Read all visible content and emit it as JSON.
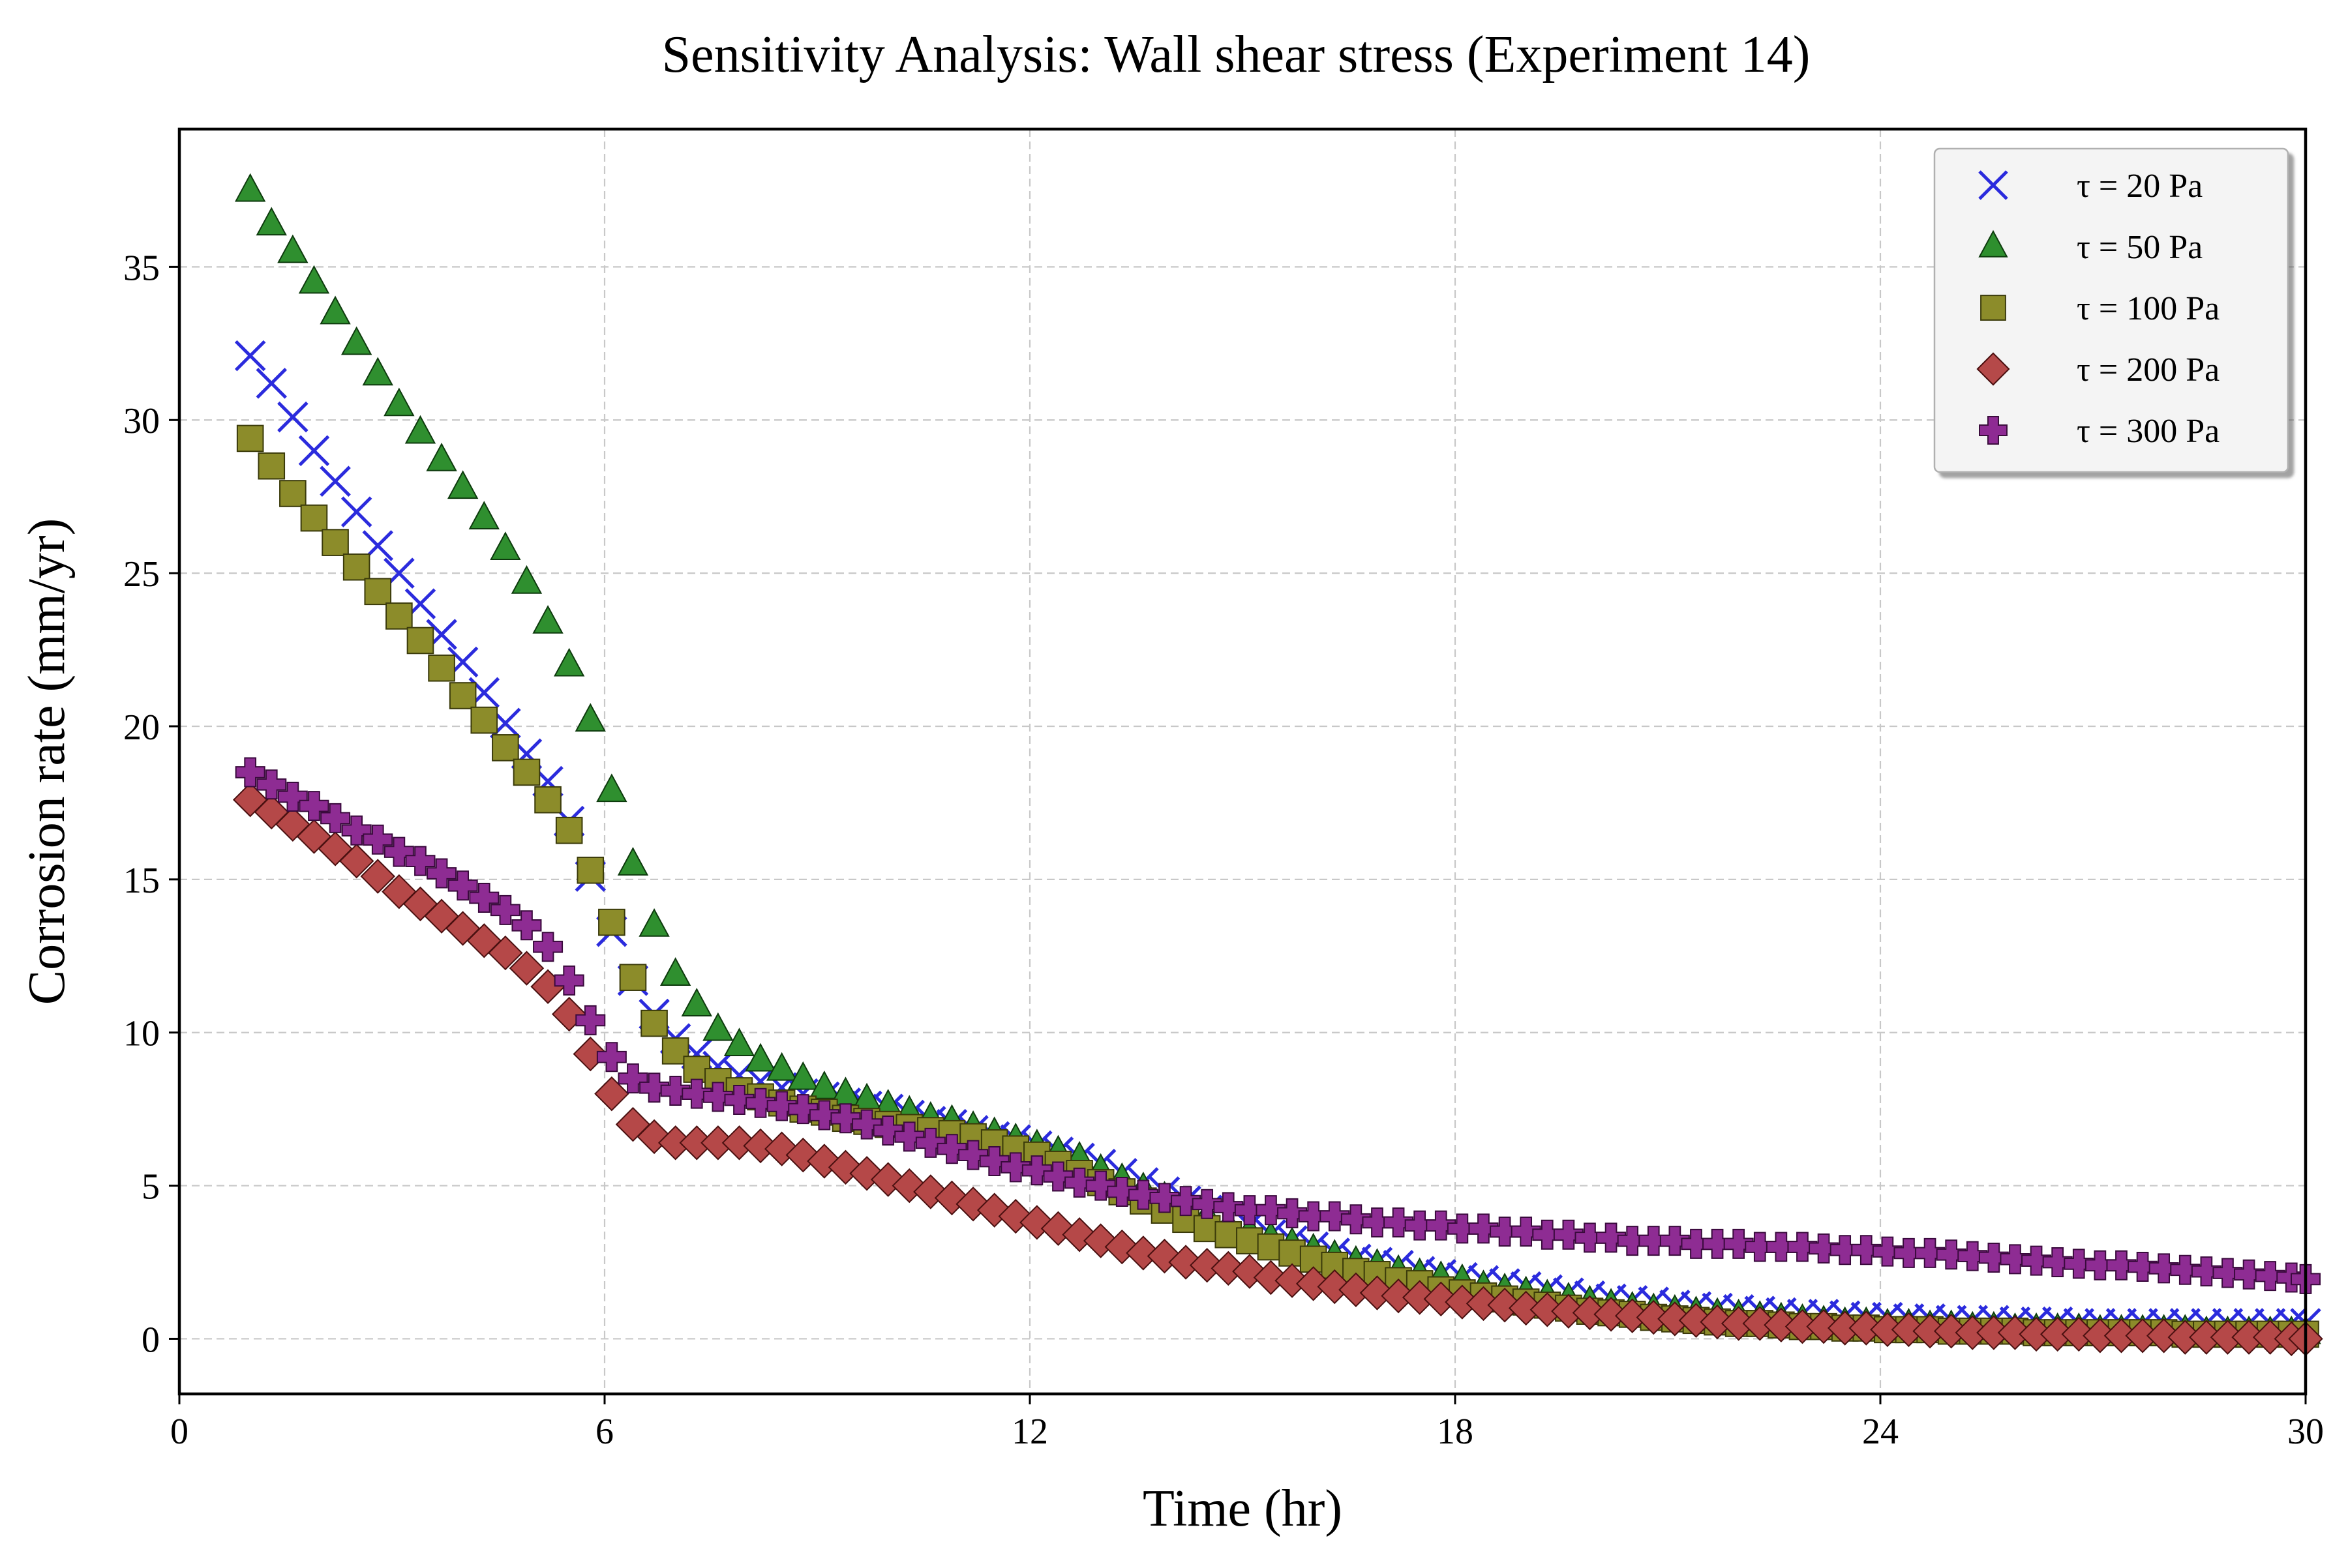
{
  "chart_data": {
    "type": "scatter",
    "title": "Sensitivity Analysis: Wall shear stress (Experiment 14)",
    "xlabel": "Time (hr)",
    "ylabel": "Corrosion rate (mm/yr)",
    "xlim": [
      0,
      30
    ],
    "ylim": [
      -1.8,
      39.5
    ],
    "xticks": [
      0,
      6,
      12,
      18,
      24,
      30
    ],
    "yticks": [
      0,
      5,
      10,
      15,
      20,
      25,
      30,
      35
    ],
    "grid": true,
    "legend_position": "top-right",
    "x": [
      1.0,
      1.3,
      1.6,
      1.9,
      2.2,
      2.5,
      2.8,
      3.1,
      3.4,
      3.7,
      4.0,
      4.3,
      4.6,
      4.9,
      5.2,
      5.5,
      5.8,
      6.1,
      6.4,
      6.7,
      7.0,
      7.3,
      7.6,
      7.9,
      8.2,
      8.5,
      8.8,
      9.1,
      9.4,
      9.7,
      10.0,
      10.3,
      10.6,
      10.9,
      11.2,
      11.5,
      11.8,
      12.1,
      12.4,
      12.7,
      13.0,
      13.3,
      13.6,
      13.9,
      14.2,
      14.5,
      14.8,
      15.1,
      15.4,
      15.7,
      16.0,
      16.3,
      16.6,
      16.9,
      17.2,
      17.5,
      17.8,
      18.1,
      18.4,
      18.7,
      19.0,
      19.3,
      19.6,
      19.9,
      20.2,
      20.5,
      20.8,
      21.1,
      21.4,
      21.7,
      22.0,
      22.3,
      22.6,
      22.9,
      23.2,
      23.5,
      23.8,
      24.1,
      24.4,
      24.7,
      25.0,
      25.3,
      25.6,
      25.9,
      26.2,
      26.5,
      26.8,
      27.1,
      27.4,
      27.7,
      28.0,
      28.3,
      28.6,
      28.9,
      29.2,
      29.5,
      29.8,
      30.0
    ],
    "series": [
      {
        "name": "τ = 20 Pa",
        "marker": "x",
        "color": "#2b2bdd",
        "edge": "#2b2bdd",
        "values": [
          32.1,
          31.2,
          30.1,
          29.0,
          28.0,
          27.0,
          25.9,
          25.0,
          24.0,
          23.0,
          22.1,
          21.1,
          20.1,
          19.1,
          18.2,
          16.9,
          15.1,
          13.3,
          11.7,
          10.6,
          9.8,
          9.3,
          8.9,
          8.6,
          8.4,
          8.2,
          8.0,
          7.9,
          7.7,
          7.6,
          7.5,
          7.3,
          7.1,
          7.0,
          6.8,
          6.6,
          6.5,
          6.3,
          6.1,
          5.9,
          5.7,
          5.4,
          5.1,
          4.8,
          4.5,
          4.2,
          4.0,
          3.7,
          3.4,
          3.2,
          3.0,
          2.8,
          2.6,
          2.5,
          2.4,
          2.2,
          2.1,
          2.0,
          1.9,
          1.8,
          1.7,
          1.6,
          1.5,
          1.4,
          1.3,
          1.25,
          1.2,
          1.1,
          1.05,
          1.0,
          0.95,
          0.9,
          0.85,
          0.8,
          0.8,
          0.75,
          0.7,
          0.7,
          0.65,
          0.65,
          0.6,
          0.6,
          0.6,
          0.55,
          0.55,
          0.55,
          0.5,
          0.5,
          0.5,
          0.5,
          0.5,
          0.5,
          0.5,
          0.5,
          0.5,
          0.5,
          0.5,
          0.5
        ]
      },
      {
        "name": "τ = 50 Pa",
        "marker": "triangle",
        "color": "#2f8f2f",
        "edge": "#0d3a0d",
        "values": [
          37.5,
          36.4,
          35.5,
          34.5,
          33.5,
          32.5,
          31.5,
          30.5,
          29.6,
          28.7,
          27.8,
          26.8,
          25.8,
          24.7,
          23.4,
          22.0,
          20.2,
          17.9,
          15.5,
          13.5,
          11.9,
          10.9,
          10.1,
          9.6,
          9.1,
          8.8,
          8.5,
          8.2,
          8.0,
          7.8,
          7.6,
          7.4,
          7.2,
          7.1,
          6.9,
          6.7,
          6.5,
          6.3,
          6.1,
          5.9,
          5.5,
          5.2,
          4.9,
          4.6,
          4.3,
          4.0,
          3.7,
          3.5,
          3.3,
          3.1,
          2.9,
          2.7,
          2.5,
          2.4,
          2.2,
          2.1,
          2.0,
          1.9,
          1.7,
          1.6,
          1.5,
          1.4,
          1.3,
          1.2,
          1.1,
          1.0,
          0.95,
          0.9,
          0.85,
          0.8,
          0.75,
          0.7,
          0.65,
          0.6,
          0.55,
          0.5,
          0.5,
          0.45,
          0.45,
          0.4,
          0.4,
          0.35,
          0.35,
          0.3,
          0.3,
          0.3,
          0.3,
          0.25,
          0.25,
          0.25,
          0.25,
          0.25,
          0.2,
          0.2,
          0.2,
          0.2,
          0.2,
          0.2
        ]
      },
      {
        "name": "τ = 100 Pa",
        "marker": "square",
        "color": "#8c8c2a",
        "edge": "#3a3a0a",
        "values": [
          29.4,
          28.5,
          27.6,
          26.8,
          26.0,
          25.2,
          24.4,
          23.6,
          22.8,
          21.9,
          21.0,
          20.2,
          19.3,
          18.5,
          17.6,
          16.6,
          15.3,
          13.6,
          11.8,
          10.3,
          9.4,
          8.8,
          8.4,
          8.1,
          7.9,
          7.7,
          7.5,
          7.4,
          7.2,
          7.1,
          7.0,
          6.9,
          6.8,
          6.7,
          6.6,
          6.4,
          6.2,
          6.0,
          5.7,
          5.4,
          5.1,
          4.8,
          4.5,
          4.2,
          3.9,
          3.6,
          3.4,
          3.2,
          3.0,
          2.8,
          2.6,
          2.4,
          2.2,
          2.1,
          1.9,
          1.8,
          1.6,
          1.5,
          1.4,
          1.3,
          1.2,
          1.1,
          1.0,
          0.9,
          0.85,
          0.8,
          0.7,
          0.65,
          0.6,
          0.55,
          0.5,
          0.5,
          0.45,
          0.4,
          0.4,
          0.35,
          0.35,
          0.3,
          0.3,
          0.3,
          0.25,
          0.25,
          0.25,
          0.25,
          0.2,
          0.2,
          0.2,
          0.2,
          0.2,
          0.2,
          0.2,
          0.15,
          0.15,
          0.15,
          0.15,
          0.15,
          0.15,
          0.15
        ]
      },
      {
        "name": "τ = 200 Pa",
        "marker": "diamond",
        "color": "#b54848",
        "edge": "#4a1010",
        "values": [
          17.6,
          17.2,
          16.8,
          16.4,
          16.0,
          15.6,
          15.1,
          14.6,
          14.2,
          13.8,
          13.4,
          13.0,
          12.6,
          12.1,
          11.5,
          10.6,
          9.3,
          8.0,
          7.0,
          6.6,
          6.4,
          6.4,
          6.4,
          6.4,
          6.3,
          6.2,
          6.0,
          5.8,
          5.6,
          5.4,
          5.2,
          5.0,
          4.8,
          4.6,
          4.4,
          4.2,
          4.0,
          3.8,
          3.6,
          3.4,
          3.2,
          3.0,
          2.8,
          2.7,
          2.5,
          2.4,
          2.3,
          2.2,
          2.0,
          1.9,
          1.8,
          1.7,
          1.6,
          1.5,
          1.4,
          1.35,
          1.3,
          1.2,
          1.15,
          1.1,
          1.0,
          0.95,
          0.9,
          0.85,
          0.8,
          0.75,
          0.7,
          0.65,
          0.6,
          0.55,
          0.5,
          0.5,
          0.45,
          0.4,
          0.4,
          0.35,
          0.35,
          0.3,
          0.3,
          0.25,
          0.25,
          0.2,
          0.2,
          0.2,
          0.15,
          0.15,
          0.15,
          0.1,
          0.1,
          0.1,
          0.1,
          0.05,
          0.05,
          0.05,
          0.05,
          0.05,
          0.0,
          0.0
        ]
      },
      {
        "name": "τ = 300 Pa",
        "marker": "plus",
        "color": "#8e2c93",
        "edge": "#3a0a3d",
        "values": [
          18.5,
          18.1,
          17.7,
          17.4,
          17.0,
          16.6,
          16.3,
          15.9,
          15.6,
          15.2,
          14.8,
          14.4,
          14.0,
          13.5,
          12.8,
          11.7,
          10.4,
          9.2,
          8.5,
          8.2,
          8.1,
          8.0,
          7.9,
          7.8,
          7.7,
          7.6,
          7.5,
          7.3,
          7.2,
          7.0,
          6.8,
          6.6,
          6.4,
          6.2,
          6.0,
          5.8,
          5.6,
          5.5,
          5.3,
          5.1,
          5.0,
          4.8,
          4.7,
          4.6,
          4.5,
          4.4,
          4.3,
          4.2,
          4.2,
          4.1,
          4.0,
          4.0,
          3.9,
          3.8,
          3.8,
          3.7,
          3.7,
          3.6,
          3.6,
          3.5,
          3.5,
          3.4,
          3.4,
          3.3,
          3.3,
          3.2,
          3.2,
          3.2,
          3.1,
          3.1,
          3.1,
          3.0,
          3.0,
          3.0,
          2.95,
          2.9,
          2.9,
          2.85,
          2.8,
          2.8,
          2.75,
          2.7,
          2.65,
          2.6,
          2.55,
          2.5,
          2.45,
          2.4,
          2.4,
          2.35,
          2.3,
          2.25,
          2.2,
          2.15,
          2.1,
          2.05,
          2.0,
          1.95
        ]
      }
    ]
  }
}
